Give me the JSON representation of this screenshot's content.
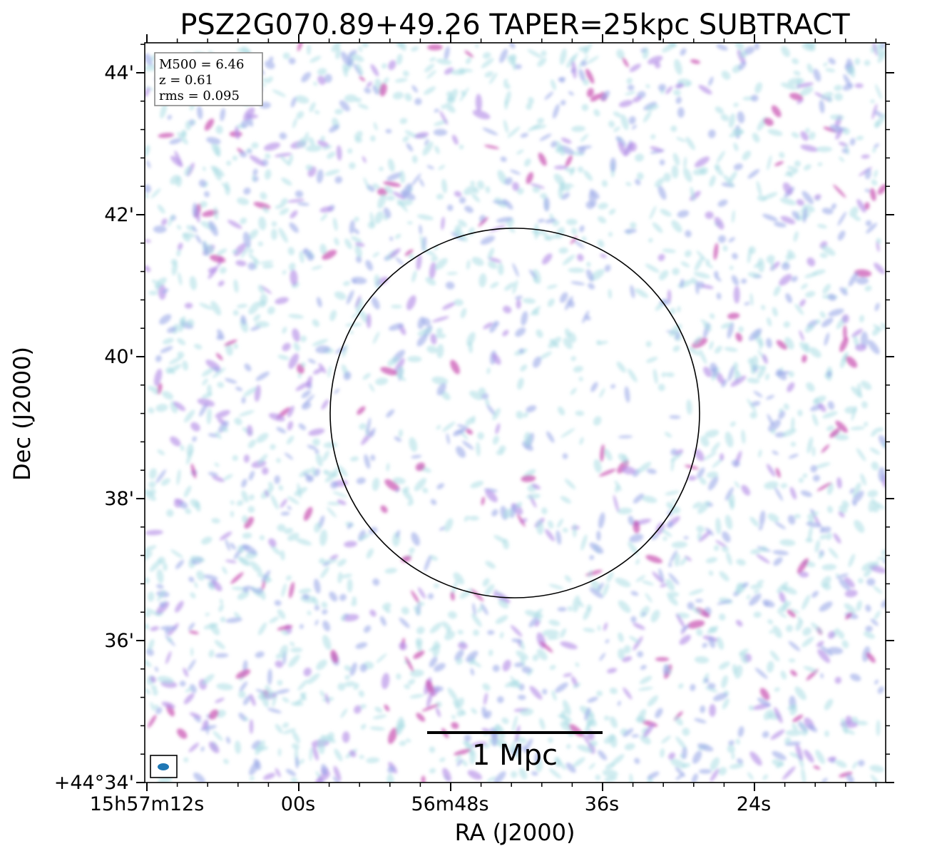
{
  "title": "PSZ2G070.89+49.26 TAPER=25kpc SUBTRACT",
  "axes": {
    "xlabel": "RA (J2000)",
    "ylabel": "Dec (J2000)",
    "x_ticks": [
      "15h57m12s",
      "00s",
      "56m48s",
      "36s",
      "24s"
    ],
    "y_ticks": [
      "+44°34'",
      "36'",
      "38'",
      "40'",
      "42'",
      "44'"
    ]
  },
  "info_box": {
    "lines": [
      "M500 = 6.46",
      "z = 0.61",
      "rms = 0.095"
    ]
  },
  "scalebar": {
    "label": "1 Mpc"
  },
  "colors": {
    "noise_light": "#a9dce3",
    "noise_mid": "#9aa8e8",
    "noise_violet": "#b38fe6",
    "noise_magenta": "#c74fb0",
    "beam": "#1f77b4"
  }
}
